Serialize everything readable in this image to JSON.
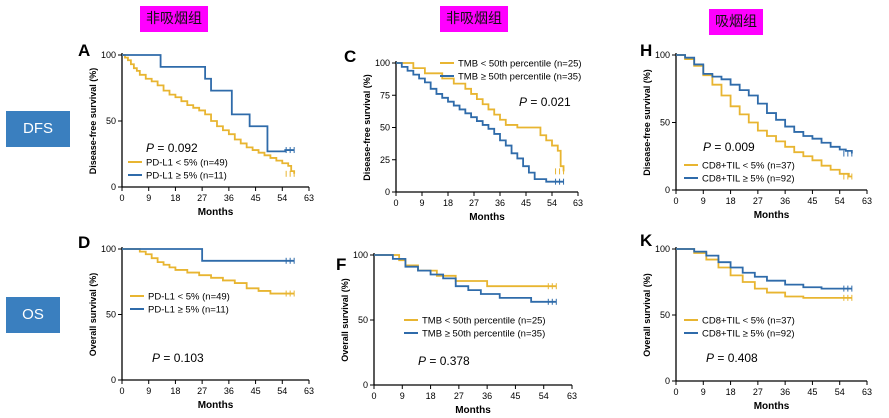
{
  "headers": [
    "非吸烟组",
    "非吸烟组",
    "吸烟组"
  ],
  "row_labels": [
    "DFS",
    "OS"
  ],
  "colors": {
    "gold": "#E8B531",
    "blue": "#2F6BAA",
    "header_bg": "#FF00FF",
    "row_label_bg": "#3A7FBF"
  },
  "chart_data": [
    {
      "type": "line",
      "panel_letter": "A",
      "xlabel": "Months",
      "ylabel": "Disease-free survival (%)",
      "xticks": [
        0,
        9,
        18,
        27,
        36,
        45,
        54,
        63
      ],
      "yticks": [
        0,
        50,
        100
      ],
      "xlim": [
        0,
        63
      ],
      "ylim": [
        0,
        100
      ],
      "p_prefix": "P",
      "p_value": " = 0.092",
      "series": [
        {
          "name": "PD-L1 < 5% (n=49)",
          "color": "#E8B531",
          "x": [
            0,
            1,
            2,
            3,
            4,
            5,
            6,
            8,
            10,
            12,
            14,
            16,
            18,
            20,
            22,
            24,
            26,
            28,
            30,
            32,
            34,
            36,
            38,
            40,
            42,
            44,
            46,
            48,
            50,
            52,
            54,
            56,
            57,
            58
          ],
          "y": [
            100,
            98,
            96,
            93,
            90,
            88,
            85,
            82,
            80,
            77,
            73,
            70,
            68,
            65,
            62,
            60,
            58,
            55,
            50,
            46,
            43,
            40,
            36,
            33,
            30,
            28,
            26,
            24,
            22,
            20,
            18,
            16,
            12,
            10
          ]
        },
        {
          "name": "PD-L1 ≥ 5% (n=11)",
          "color": "#2F6BAA",
          "x": [
            0,
            13,
            13,
            28,
            28,
            30,
            30,
            37,
            37,
            43,
            43,
            49,
            49,
            55,
            55,
            58
          ],
          "y": [
            100,
            100,
            91,
            91,
            82,
            82,
            73,
            73,
            55,
            55,
            46,
            46,
            27,
            27,
            28,
            28
          ]
        }
      ]
    },
    {
      "type": "line",
      "panel_letter": "C",
      "xlabel": "Months",
      "ylabel": "Disease-free survival (%)",
      "xticks": [
        0,
        9,
        18,
        27,
        36,
        45,
        54,
        63
      ],
      "yticks": [
        0,
        25,
        50,
        75,
        100
      ],
      "xlim": [
        0,
        63
      ],
      "ylim": [
        0,
        100
      ],
      "p_prefix": "P",
      "p_value": " = 0.021",
      "series": [
        {
          "name": "TMB < 50th percentile (n=25)",
          "color": "#E8B531",
          "x": [
            0,
            4,
            6,
            10,
            12,
            16,
            20,
            24,
            26,
            28,
            30,
            32,
            34,
            36,
            38,
            42,
            46,
            50,
            52,
            54,
            56,
            57,
            58
          ],
          "y": [
            100,
            100,
            96,
            92,
            92,
            88,
            84,
            80,
            76,
            72,
            68,
            64,
            60,
            56,
            52,
            50,
            50,
            44,
            40,
            36,
            32,
            20,
            16
          ]
        },
        {
          "name": "TMB ≥ 50th percentile (n=35)",
          "color": "#2F6BAA",
          "x": [
            0,
            2,
            4,
            6,
            8,
            10,
            12,
            14,
            16,
            18,
            20,
            22,
            24,
            26,
            28,
            30,
            32,
            34,
            36,
            38,
            40,
            42,
            44,
            46,
            48,
            52,
            56,
            58
          ],
          "y": [
            100,
            97,
            94,
            91,
            88,
            85,
            80,
            76,
            73,
            70,
            67,
            64,
            61,
            58,
            55,
            52,
            49,
            45,
            40,
            36,
            30,
            26,
            20,
            15,
            10,
            8,
            8,
            8
          ]
        }
      ]
    },
    {
      "type": "line",
      "panel_letter": "H",
      "xlabel": "Months",
      "ylabel": "Disease-free survival (%)",
      "xticks": [
        0,
        9,
        18,
        27,
        36,
        45,
        54,
        63
      ],
      "yticks": [
        0,
        50,
        100
      ],
      "xlim": [
        0,
        63
      ],
      "ylim": [
        0,
        100
      ],
      "p_prefix": "P",
      "p_value": " = 0.009",
      "series": [
        {
          "name": "CD8+TIL < 5% (n=37)",
          "color": "#E8B531",
          "x": [
            0,
            3,
            6,
            9,
            12,
            15,
            18,
            21,
            24,
            27,
            30,
            33,
            36,
            39,
            42,
            45,
            48,
            51,
            54,
            57,
            58
          ],
          "y": [
            100,
            97,
            92,
            85,
            78,
            70,
            62,
            56,
            50,
            44,
            40,
            36,
            32,
            28,
            25,
            22,
            18,
            15,
            12,
            10,
            10
          ]
        },
        {
          "name": "CD8+TIL ≥ 5% (n=92)",
          "color": "#2F6BAA",
          "x": [
            0,
            3,
            6,
            9,
            12,
            15,
            18,
            21,
            24,
            27,
            30,
            33,
            36,
            39,
            42,
            45,
            48,
            51,
            54,
            56,
            58
          ],
          "y": [
            100,
            98,
            93,
            86,
            84,
            82,
            78,
            74,
            70,
            64,
            57,
            52,
            47,
            43,
            40,
            38,
            35,
            32,
            30,
            29,
            27
          ]
        }
      ]
    },
    {
      "type": "line",
      "panel_letter": "D",
      "xlabel": "Months",
      "ylabel": "Overall survival (%)",
      "xticks": [
        0,
        9,
        18,
        27,
        36,
        45,
        54,
        63
      ],
      "yticks": [
        0,
        50,
        100
      ],
      "xlim": [
        0,
        63
      ],
      "ylim": [
        0,
        100
      ],
      "p_prefix": "P",
      "p_value": " = 0.103",
      "series": [
        {
          "name": "PD-L1 < 5% (n=49)",
          "color": "#E8B531",
          "x": [
            0,
            6,
            8,
            10,
            12,
            14,
            16,
            18,
            22,
            26,
            30,
            34,
            38,
            42,
            46,
            50,
            54,
            58
          ],
          "y": [
            100,
            98,
            96,
            93,
            90,
            88,
            86,
            84,
            82,
            80,
            78,
            76,
            74,
            70,
            68,
            66,
            66,
            66
          ]
        },
        {
          "name": "PD-L1 ≥ 5% (n=11)",
          "color": "#2F6BAA",
          "x": [
            0,
            27,
            27,
            58
          ],
          "y": [
            100,
            100,
            91,
            91
          ]
        }
      ]
    },
    {
      "type": "line",
      "panel_letter": "F",
      "xlabel": "Months",
      "ylabel": "Overall survival (%)",
      "xticks": [
        0,
        9,
        18,
        27,
        36,
        45,
        54,
        63
      ],
      "yticks": [
        0,
        50,
        100
      ],
      "xlim": [
        0,
        63
      ],
      "ylim": [
        0,
        100
      ],
      "p_prefix": "P",
      "p_value": " = 0.378",
      "series": [
        {
          "name": "TMB < 50th percentile (n=25)",
          "color": "#E8B531",
          "x": [
            0,
            8,
            10,
            14,
            20,
            26,
            30,
            36,
            44,
            50,
            58
          ],
          "y": [
            100,
            96,
            92,
            88,
            84,
            80,
            80,
            76,
            76,
            76,
            76
          ]
        },
        {
          "name": "TMB ≥ 50th percentile (n=35)",
          "color": "#2F6BAA",
          "x": [
            0,
            6,
            10,
            14,
            18,
            22,
            26,
            30,
            34,
            40,
            50,
            58
          ],
          "y": [
            100,
            97,
            91,
            88,
            85,
            82,
            76,
            73,
            70,
            67,
            64,
            64
          ]
        }
      ]
    },
    {
      "type": "line",
      "panel_letter": "K",
      "xlabel": "Months",
      "ylabel": "Overall survival (%)",
      "xticks": [
        0,
        9,
        18,
        27,
        36,
        45,
        54,
        63
      ],
      "yticks": [
        0,
        50,
        100
      ],
      "xlim": [
        0,
        63
      ],
      "ylim": [
        0,
        100
      ],
      "p_prefix": "P",
      "p_value": " = 0.408",
      "series": [
        {
          "name": "CD8+TIL < 5% (n=37)",
          "color": "#E8B531",
          "x": [
            0,
            6,
            10,
            14,
            18,
            22,
            26,
            30,
            36,
            42,
            48,
            54,
            58
          ],
          "y": [
            100,
            97,
            92,
            86,
            80,
            75,
            70,
            67,
            64,
            63,
            63,
            63,
            63
          ]
        },
        {
          "name": "CD8+TIL ≥ 5% (n=92)",
          "color": "#2F6BAA",
          "x": [
            0,
            6,
            10,
            14,
            18,
            22,
            26,
            30,
            36,
            42,
            48,
            54,
            58
          ],
          "y": [
            100,
            98,
            95,
            90,
            86,
            82,
            79,
            76,
            73,
            71,
            70,
            70,
            70
          ]
        }
      ]
    }
  ]
}
